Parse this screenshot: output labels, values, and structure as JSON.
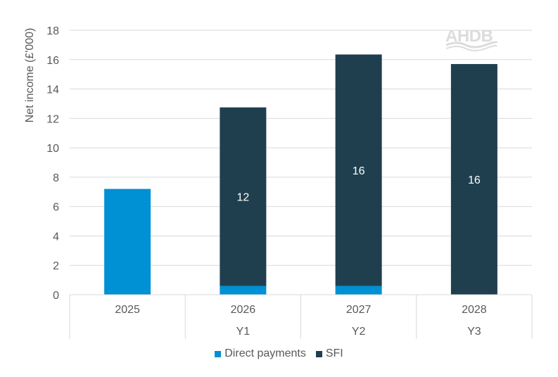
{
  "chart_data": {
    "type": "bar",
    "stacked": true,
    "categories": [
      "2025",
      "2026",
      "2027",
      "2028"
    ],
    "sub_categories": [
      "",
      "Y1",
      "Y2",
      "Y3"
    ],
    "ylabel": "Net income (£'000)",
    "ylim": [
      0,
      18
    ],
    "yticks": [
      "0",
      "2",
      "4",
      "6",
      "8",
      "10",
      "12",
      "14",
      "16",
      "18"
    ],
    "grid": true,
    "legend_position": "bottom",
    "series": [
      {
        "name": "Direct payments",
        "color": "#0090d4",
        "values": [
          7.2,
          0.6,
          0.6,
          0
        ],
        "labels": [
          "",
          "",
          "",
          ""
        ]
      },
      {
        "name": "SFI",
        "color": "#1f3f4f",
        "values": [
          0,
          12.15,
          15.75,
          15.7
        ],
        "labels": [
          "",
          "12",
          "16",
          "16"
        ]
      }
    ]
  },
  "watermark": {
    "text": "AHDB"
  }
}
